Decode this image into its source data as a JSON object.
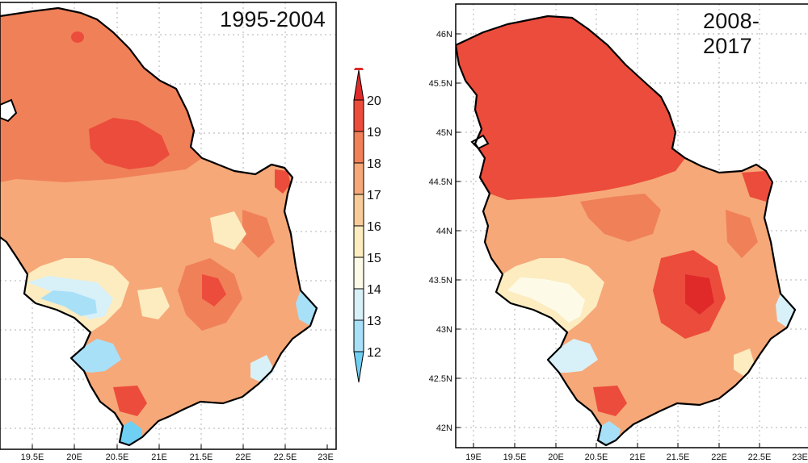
{
  "colorbar": {
    "labels": [
      "20",
      "19",
      "18",
      "17",
      "16",
      "15",
      "14",
      "13",
      "12"
    ],
    "colors": [
      "#e02a2a",
      "#ec4c3c",
      "#f08058",
      "#f6a878",
      "#f8cc98",
      "#fcecc0",
      "#fdfbe8",
      "#d8f0f8",
      "#a8e0f8",
      "#70d0f4"
    ]
  },
  "panels": [
    {
      "period": "1995-2004",
      "lon_labels": [
        "19.5E",
        "20E",
        "20.5E",
        "21E",
        "21.5E",
        "22E",
        "22.5E",
        "23E"
      ],
      "lat_labels": []
    },
    {
      "period": "2008-2017",
      "lon_labels": [
        "19E",
        "19.5E",
        "20E",
        "20.5E",
        "21E",
        "21.5E",
        "22E",
        "22.5E",
        "23E"
      ],
      "lat_labels": [
        "46N",
        "45.5N",
        "45N",
        "44.5N",
        "44N",
        "43.5N",
        "43N",
        "42.5N",
        "42N"
      ]
    }
  ]
}
